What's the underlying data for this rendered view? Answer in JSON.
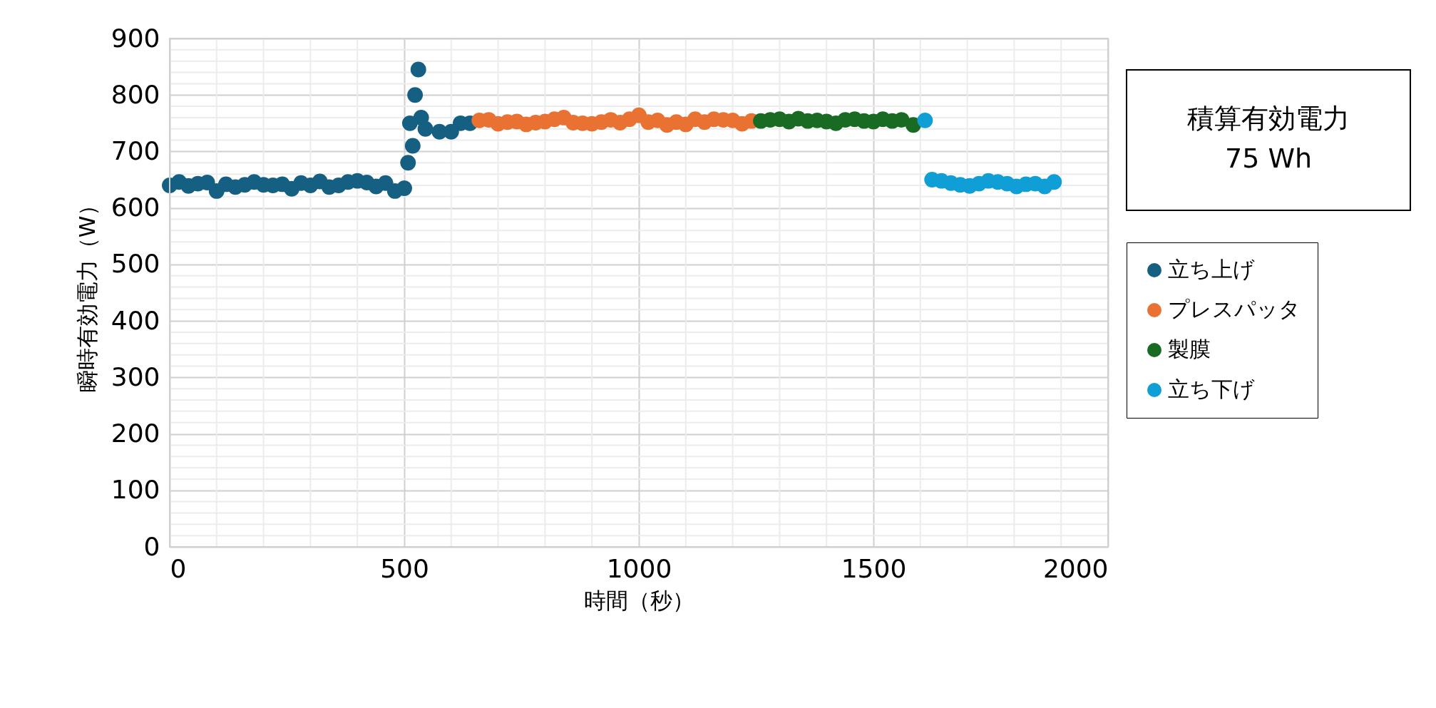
{
  "chart_data": {
    "type": "scatter",
    "xlabel": "時間（秒）",
    "ylabel": "瞬時有効電力（W）",
    "xlim": [
      0,
      2000
    ],
    "xticks": [
      0,
      500,
      1000,
      1500,
      2000
    ],
    "ylim": [
      0,
      900
    ],
    "yticks": [
      0,
      100,
      200,
      300,
      400,
      500,
      600,
      700,
      800,
      900
    ],
    "grid": true,
    "legend": "right",
    "marker": "circle",
    "annotations": [
      "積算有効電力\n75 Wh"
    ],
    "series": [
      {
        "name": "立ち上げ",
        "color": "#156082",
        "x": [
          0,
          20,
          40,
          60,
          80,
          100,
          120,
          140,
          160,
          180,
          200,
          220,
          240,
          260,
          280,
          300,
          320,
          340,
          360,
          380,
          400,
          420,
          440,
          460,
          480,
          500,
          508,
          512,
          518,
          523,
          530,
          536,
          545,
          575,
          600,
          620,
          640
        ],
        "values": [
          640,
          646,
          639,
          643,
          645,
          630,
          642,
          637,
          641,
          646,
          641,
          640,
          642,
          634,
          644,
          640,
          647,
          637,
          640,
          646,
          648,
          645,
          638,
          644,
          630,
          635,
          680,
          750,
          710,
          800,
          845,
          760,
          740,
          735,
          735,
          750,
          750
        ]
      },
      {
        "name": "プレスパッタ",
        "color": "#e97132",
        "x": [
          660,
          680,
          700,
          720,
          740,
          760,
          780,
          800,
          820,
          840,
          860,
          880,
          900,
          920,
          940,
          960,
          980,
          1000,
          1020,
          1040,
          1060,
          1080,
          1100,
          1120,
          1140,
          1160,
          1180,
          1200,
          1220,
          1240
        ],
        "values": [
          755,
          756,
          749,
          752,
          753,
          748,
          751,
          753,
          757,
          760,
          751,
          750,
          749,
          752,
          756,
          751,
          757,
          764,
          752,
          755,
          747,
          752,
          748,
          757,
          752,
          757,
          756,
          755,
          749,
          754
        ]
      },
      {
        "name": "製膜",
        "color": "#196b24",
        "x": [
          1260,
          1280,
          1300,
          1320,
          1340,
          1360,
          1380,
          1400,
          1420,
          1440,
          1460,
          1480,
          1500,
          1520,
          1540,
          1560,
          1585
        ],
        "values": [
          754,
          756,
          757,
          753,
          758,
          754,
          755,
          753,
          750,
          756,
          757,
          754,
          753,
          757,
          754,
          756,
          747
        ]
      },
      {
        "name": "立ち下げ",
        "color": "#0f9ed5",
        "x": [
          1610,
          1625,
          1645,
          1665,
          1685,
          1705,
          1725,
          1745,
          1765,
          1785,
          1805,
          1825,
          1845,
          1865,
          1885
        ],
        "values": [
          755,
          650,
          648,
          644,
          641,
          639,
          643,
          648,
          646,
          643,
          638,
          642,
          643,
          638,
          646
        ]
      }
    ]
  }
}
